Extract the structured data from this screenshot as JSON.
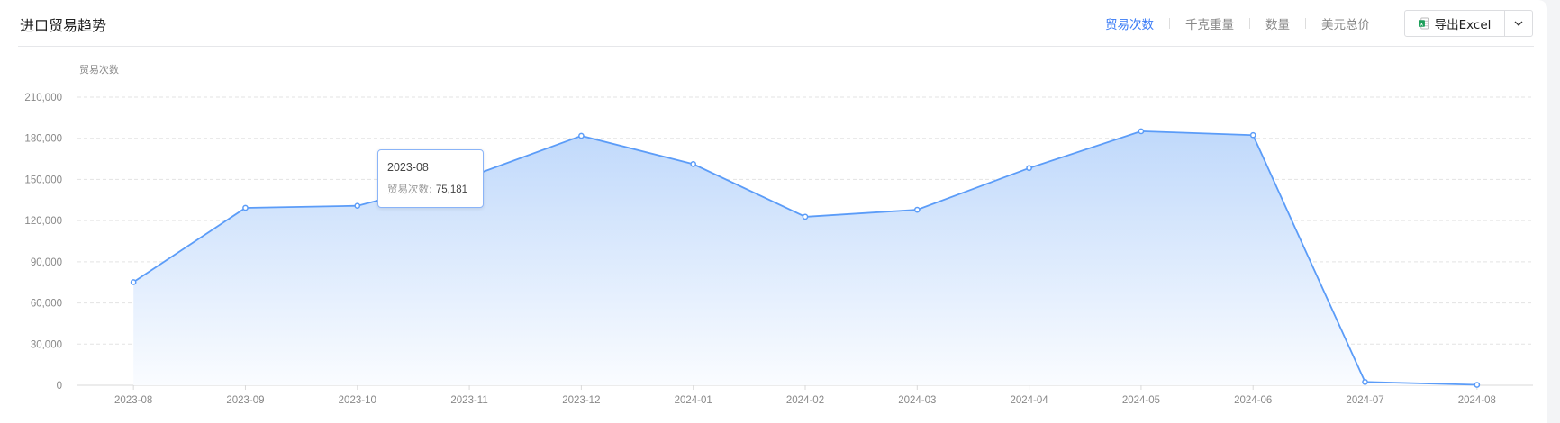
{
  "header": {
    "title": "进口贸易趋势",
    "tabs": [
      {
        "label": "贸易次数",
        "active": true
      },
      {
        "label": "千克重量",
        "active": false
      },
      {
        "label": "数量",
        "active": false
      },
      {
        "label": "美元总价",
        "active": false
      }
    ],
    "export_label": "导出Excel",
    "export_icon": "excel-icon",
    "dropdown_icon": "chevron-down-icon"
  },
  "colors": {
    "accent": "#3a7bf5",
    "line": "#5b9cf8",
    "fill_top": "#c0d9fb",
    "fill_bottom": "#fafcff"
  },
  "tooltip": {
    "title": "2023-08",
    "label": "贸易次数:",
    "value": "75,181"
  },
  "chart_data": {
    "type": "area",
    "ylabel": "贸易次数",
    "xlabel": "",
    "ylim": [
      0,
      210000
    ],
    "yticks": [
      0,
      30000,
      60000,
      90000,
      120000,
      150000,
      180000,
      210000
    ],
    "ytick_labels": [
      "0",
      "30,000",
      "60,000",
      "90,000",
      "120,000",
      "150,000",
      "180,000",
      "210,000"
    ],
    "grid": true,
    "categories": [
      "2023-08",
      "2023-09",
      "2023-10",
      "2023-11",
      "2023-12",
      "2024-01",
      "2024-02",
      "2024-03",
      "2024-04",
      "2024-05",
      "2024-06",
      "2024-07",
      "2024-08"
    ],
    "series": [
      {
        "values": [
          75181,
          129300,
          130800,
          151900,
          181800,
          161200,
          122800,
          127900,
          158300,
          185100,
          182300,
          2400,
          300
        ]
      }
    ]
  }
}
